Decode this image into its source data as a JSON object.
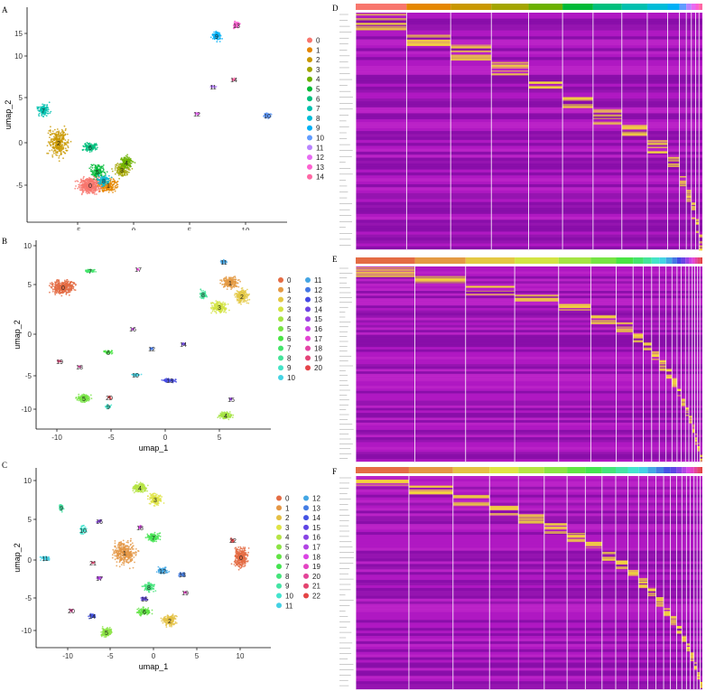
{
  "panels": {
    "A": {
      "letter": "A",
      "xlabel": "umap_1",
      "ylabel": "umap_2",
      "xticks": [
        "-5",
        "0",
        "5",
        "10"
      ],
      "yticks": [
        "15",
        "10",
        "5",
        "0",
        "-5"
      ],
      "legend": [
        "0",
        "1",
        "2",
        "3",
        "4",
        "5",
        "6",
        "7",
        "8",
        "9",
        "10",
        "11",
        "12",
        "13",
        "14"
      ]
    },
    "B": {
      "letter": "B",
      "xlabel": "umap_1",
      "ylabel": "umap_2",
      "xticks": [
        "-10",
        "-5",
        "0",
        "5"
      ],
      "yticks": [
        "10",
        "5",
        "0",
        "-5",
        "-10"
      ],
      "legend": [
        "0",
        "1",
        "2",
        "3",
        "4",
        "5",
        "6",
        "7",
        "8",
        "9",
        "10",
        "11",
        "12",
        "13",
        "14",
        "15",
        "16",
        "17",
        "18",
        "19",
        "20"
      ]
    },
    "C": {
      "letter": "C",
      "xlabel": "umap_1",
      "ylabel": "umap_2",
      "xticks": [
        "-10",
        "-5",
        "0",
        "5",
        "10"
      ],
      "yticks": [
        "10",
        "5",
        "0",
        "-5",
        "-10"
      ],
      "legend": [
        "0",
        "1",
        "2",
        "3",
        "4",
        "5",
        "6",
        "7",
        "8",
        "9",
        "10",
        "11",
        "12",
        "13",
        "14",
        "15",
        "16",
        "17",
        "18",
        "19",
        "20",
        "21",
        "22"
      ]
    },
    "D": {
      "letter": "D",
      "clusters": 15
    },
    "E": {
      "letter": "E",
      "clusters": 21
    },
    "F": {
      "letter": "F",
      "clusters": 23
    }
  },
  "colors": [
    "#f8766d",
    "#e58700",
    "#c99800",
    "#a3a500",
    "#6bb100",
    "#00ba38",
    "#00bf7d",
    "#00c0af",
    "#00bcd8",
    "#00b0f6",
    "#619cff",
    "#b983ff",
    "#e76bf3",
    "#fd61d1",
    "#ff67a4"
  ],
  "chart_data": [
    {
      "type": "scatter",
      "panel": "A",
      "xlabel": "umap_1",
      "ylabel": "umap_2",
      "legend": [
        "0",
        "1",
        "2",
        "3",
        "4",
        "5",
        "6",
        "7",
        "8",
        "9",
        "10",
        "11",
        "12",
        "13",
        "14"
      ]
    },
    {
      "type": "scatter",
      "panel": "B",
      "xlabel": "umap_1",
      "ylabel": "umap_2",
      "legend": [
        "0",
        "1",
        "2",
        "3",
        "4",
        "5",
        "6",
        "7",
        "8",
        "9",
        "10",
        "11",
        "12",
        "13",
        "14",
        "15",
        "16",
        "17",
        "18",
        "19",
        "20"
      ]
    },
    {
      "type": "scatter",
      "panel": "C",
      "xlabel": "umap_1",
      "ylabel": "umap_2",
      "legend": [
        "0",
        "1",
        "2",
        "3",
        "4",
        "5",
        "6",
        "7",
        "8",
        "9",
        "10",
        "11",
        "12",
        "13",
        "14",
        "15",
        "16",
        "17",
        "18",
        "19",
        "20",
        "21",
        "22"
      ]
    },
    {
      "type": "heatmap",
      "panel": "D",
      "clusters": 15
    },
    {
      "type": "heatmap",
      "panel": "E",
      "clusters": 21
    },
    {
      "type": "heatmap",
      "panel": "F",
      "clusters": 23
    }
  ]
}
